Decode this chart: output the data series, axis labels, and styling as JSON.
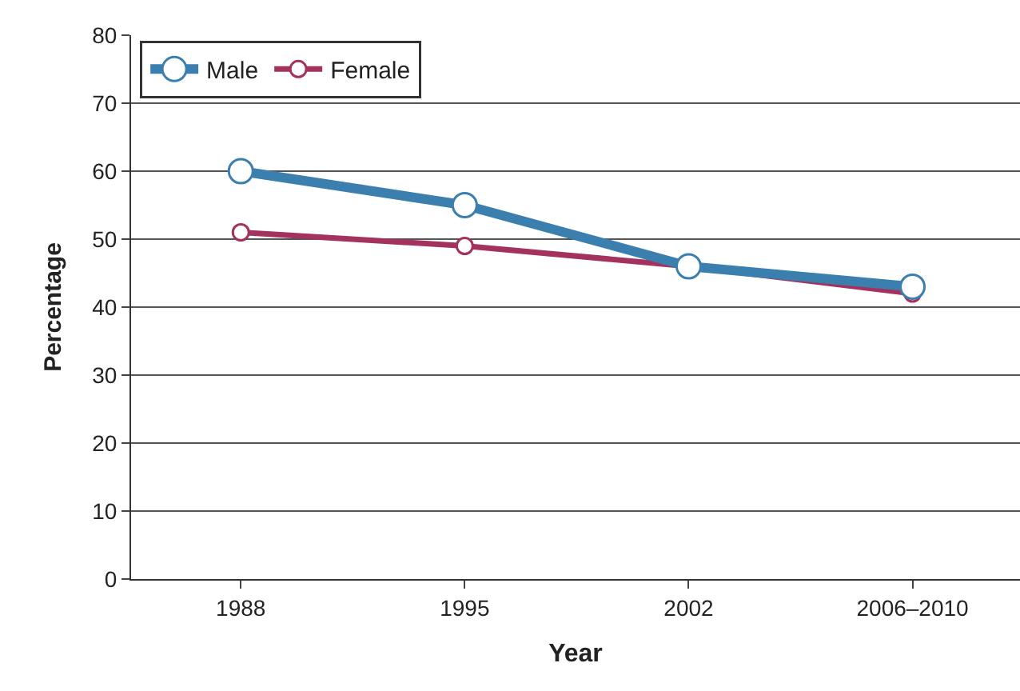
{
  "chart_data": {
    "type": "line",
    "xlabel": "Year",
    "ylabel": "Percentage",
    "categories": [
      "1988",
      "1995",
      "2002",
      "2006–2010"
    ],
    "series": [
      {
        "name": "Male",
        "color": "#3b7fae",
        "values": [
          60,
          55,
          46,
          43
        ]
      },
      {
        "name": "Female",
        "color": "#a3325f",
        "values": [
          51,
          49,
          46,
          42
        ]
      }
    ],
    "ylim": [
      0,
      80
    ],
    "yticks": [
      0,
      10,
      20,
      30,
      40,
      50,
      60,
      70,
      80
    ],
    "grid": "y",
    "legend": "top left",
    "marker": "circle",
    "line_style": "solid"
  }
}
